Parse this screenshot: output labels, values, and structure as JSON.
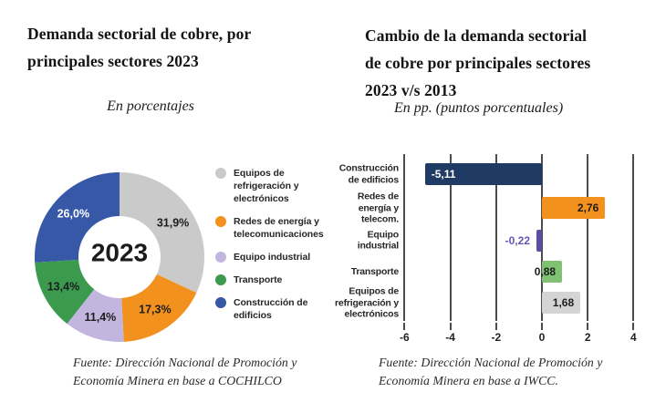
{
  "left": {
    "title_lines": [
      "Demanda sectorial de cobre, por",
      "principales sectores 2023"
    ],
    "subtitle": "En porcentajes",
    "source_lines": [
      "Fuente: Dirección Nacional de Promoción y",
      "Economía Minera en base a COCHILCO"
    ]
  },
  "right": {
    "title_lines": [
      "Cambio de la demanda sectorial",
      "de cobre por principales sectores",
      "2023 v/s 2013"
    ],
    "subtitle": "En pp. (puntos porcentuales)",
    "source_lines": [
      "Fuente: Dirección Nacional de Promoción y",
      "Economía Minera en base a IWCC."
    ]
  },
  "chart_data": [
    {
      "type": "pie",
      "subtype": "donut",
      "title": "Demanda sectorial de cobre, por principales sectores 2023",
      "units": "En porcentajes",
      "center_label": "2023",
      "legend_position": "right",
      "segments": [
        {
          "label": "Equipos de refrigeración y electrónicos",
          "legend_lines": [
            "Equipos de",
            "refrigeración y",
            "electrónicos"
          ],
          "value": 31.9,
          "display": "31,9%",
          "color": "#cacaca",
          "text_color": "#1d1d1d"
        },
        {
          "label": "Redes de energía y telecomunicaciones",
          "legend_lines": [
            "Redes de energía y",
            "telecomunicaciones"
          ],
          "value": 17.3,
          "display": "17,3%",
          "color": "#f3911e",
          "text_color": "#1d1d1d"
        },
        {
          "label": "Equipo industrial",
          "legend_lines": [
            "Equipo industrial"
          ],
          "value": 11.4,
          "display": "11,4%",
          "color": "#c2b5de",
          "text_color": "#1d1d1d"
        },
        {
          "label": "Transporte",
          "legend_lines": [
            "Transporte"
          ],
          "value": 13.4,
          "display": "13,4%",
          "color": "#3b9a4d",
          "text_color": "#1d1d1d"
        },
        {
          "label": "Construcción de edificios",
          "legend_lines": [
            "Construcción de",
            "edificios"
          ],
          "value": 26.0,
          "display": "26,0%",
          "color": "#3658a7",
          "text_color": "#ffffff"
        }
      ]
    },
    {
      "type": "bar",
      "orientation": "horizontal",
      "title": "Cambio de la demanda sectorial de cobre por principales sectores 2023 v/s 2013",
      "units": "En pp. (puntos porcentuales)",
      "xlim": [
        -6,
        4
      ],
      "xticks": [
        -6,
        -4,
        -2,
        0,
        2,
        4
      ],
      "xtick_labels": [
        "-6",
        "-4",
        "-2",
        "0",
        "2",
        "4"
      ],
      "grid": true,
      "categories": [
        "Construcción de edificios",
        "Redes de energía y telecom.",
        "Equipo industrial",
        "Transporte",
        "Equipos de refrigeración y electrónicos"
      ],
      "category_lines": [
        [
          "Construcción",
          "de edificios"
        ],
        [
          "Redes de",
          "energía y",
          "telecom."
        ],
        [
          "Equipo",
          "industrial"
        ],
        [
          "Transporte"
        ],
        [
          "Equipos de",
          "refrigeración y",
          "electrónicos"
        ]
      ],
      "values": [
        -5.11,
        2.76,
        -0.22,
        0.88,
        1.68
      ],
      "value_labels": [
        "-5,11",
        "2,76",
        "-0,22",
        "0,88",
        "1,68"
      ],
      "bar_colors": [
        "#1f3b63",
        "#f3911e",
        "#5c4da1",
        "#80c173",
        "#d4d4d4"
      ],
      "label_styles": [
        {
          "placement": "inside-start",
          "color": "#ffffff"
        },
        {
          "placement": "inside-end",
          "color": "#1d1d1d"
        },
        {
          "placement": "outside-start",
          "color": "#6454b8"
        },
        {
          "placement": "inside-end",
          "color": "#1d1d1d"
        },
        {
          "placement": "inside-end",
          "color": "#1d1d1d"
        }
      ]
    }
  ]
}
